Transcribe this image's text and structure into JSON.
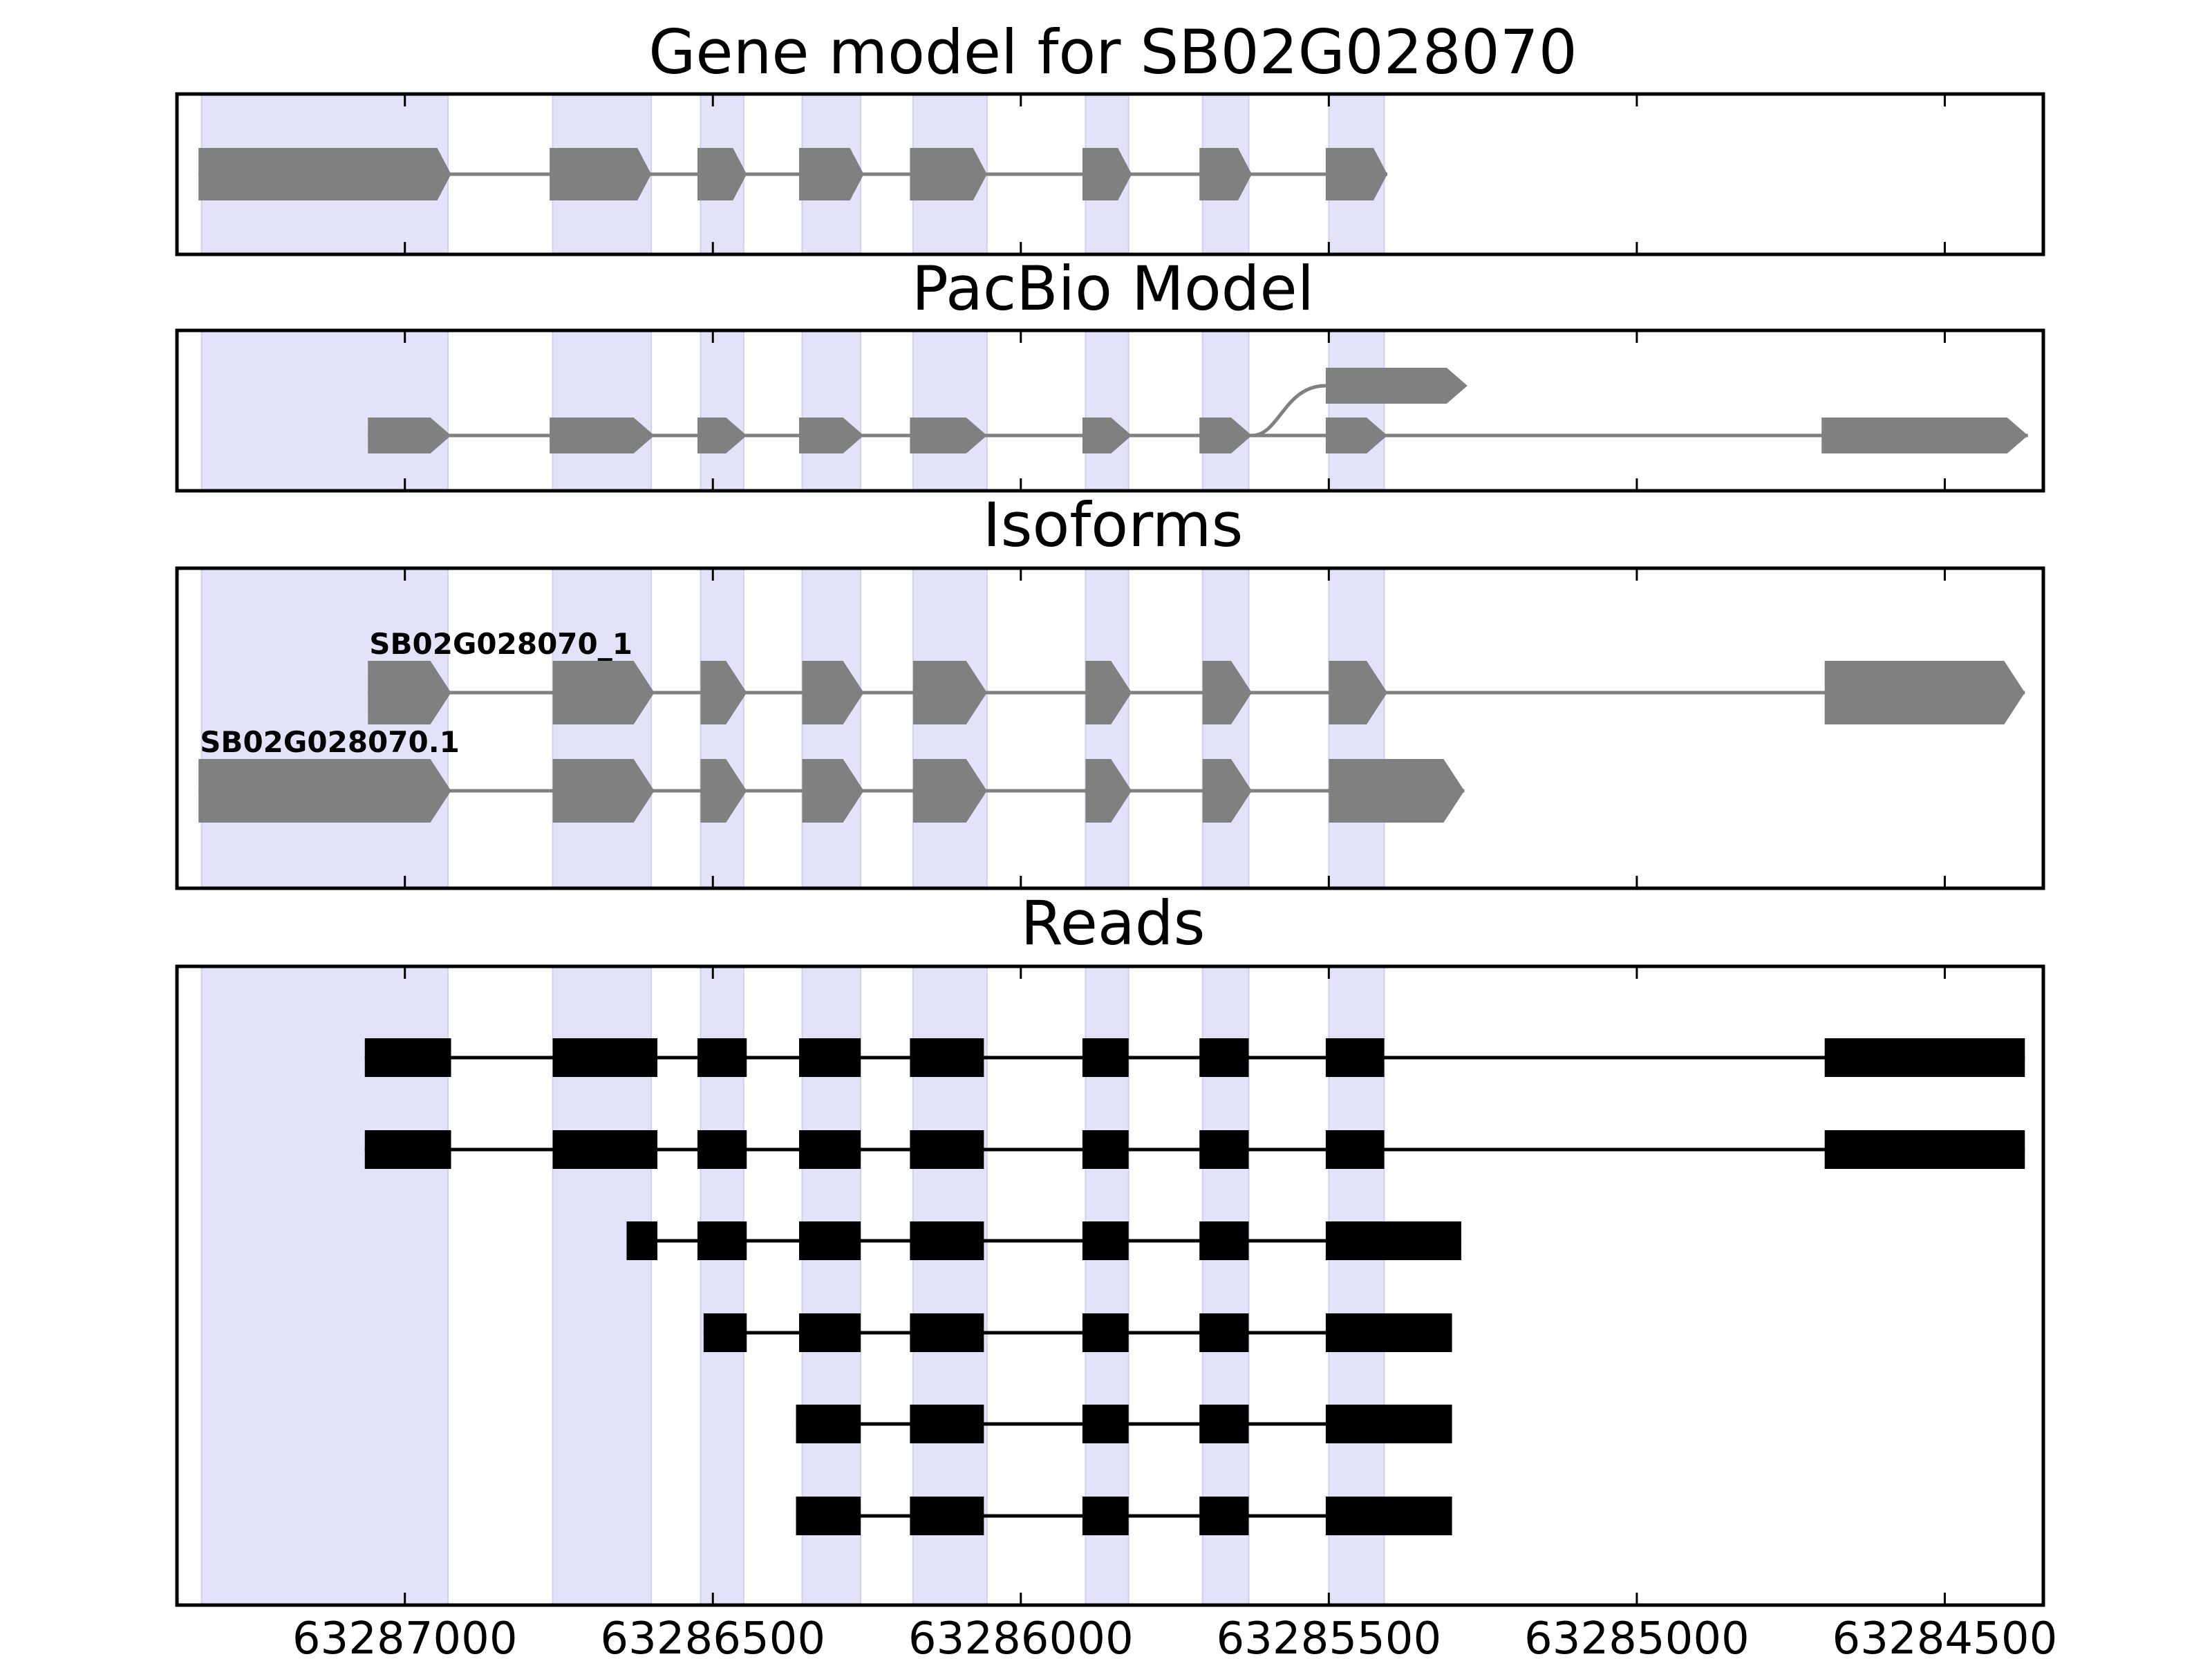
{
  "chart_data": {
    "type": "gene-structure",
    "xaxis": {
      "reversed": true,
      "xlim": [
        63287370,
        63284340
      ],
      "ticks": [
        63287000,
        63286500,
        63286000,
        63285500,
        63285000,
        63284500
      ],
      "tick_labels": [
        "63287000",
        "63286500",
        "63286000",
        "63285500",
        "63285000",
        "63284500"
      ]
    },
    "highlight_color": "#e2e2f9",
    "highlight_regions": [
      [
        63287330,
        63286930
      ],
      [
        63286760,
        63286600
      ],
      [
        63286520,
        63286450
      ],
      [
        63286355,
        63286260
      ],
      [
        63286175,
        63286055
      ],
      [
        63285895,
        63285825
      ],
      [
        63285705,
        63285630
      ],
      [
        63285500,
        63285410
      ]
    ],
    "panels": [
      {
        "title": "Gene model for SB02G028070",
        "mark_color": "#808080",
        "tracks": [
          {
            "label": "",
            "exons": [
              [
                63287335,
                63286925
              ],
              [
                63286765,
                63286600
              ],
              [
                63286525,
                63286445
              ],
              [
                63286360,
                63286255
              ],
              [
                63286180,
                63286055
              ],
              [
                63285900,
                63285820
              ],
              [
                63285710,
                63285625
              ],
              [
                63285505,
                63285405
              ]
            ]
          }
        ]
      },
      {
        "title": "PacBio Model",
        "mark_color": "#808080",
        "tracks": [
          {
            "label": "",
            "exons": [
              [
                63285505,
                63285275
              ]
            ],
            "branch_from": 63285625
          },
          {
            "label": "",
            "exons": [
              [
                63287060,
                63286925
              ],
              [
                63286765,
                63286595
              ],
              [
                63286525,
                63286445
              ],
              [
                63286360,
                63286255
              ],
              [
                63286180,
                63286055
              ],
              [
                63285900,
                63285820
              ],
              [
                63285710,
                63285625
              ],
              [
                63285505,
                63285405
              ],
              [
                63284700,
                63284365
              ]
            ]
          }
        ]
      },
      {
        "title": "Isoforms",
        "mark_color": "#808080",
        "tracks": [
          {
            "label": "SB02G028070_1",
            "exons": [
              [
                63287060,
                63286925
              ],
              [
                63286760,
                63286595
              ],
              [
                63286520,
                63286445
              ],
              [
                63286355,
                63286255
              ],
              [
                63286175,
                63286055
              ],
              [
                63285895,
                63285820
              ],
              [
                63285705,
                63285625
              ],
              [
                63285500,
                63285405
              ],
              [
                63284695,
                63284370
              ]
            ]
          },
          {
            "label": "SB02G028070.1",
            "exons": [
              [
                63287335,
                63286925
              ],
              [
                63286760,
                63286595
              ],
              [
                63286520,
                63286445
              ],
              [
                63286355,
                63286255
              ],
              [
                63286175,
                63286055
              ],
              [
                63285895,
                63285820
              ],
              [
                63285705,
                63285625
              ],
              [
                63285500,
                63285280
              ]
            ]
          }
        ]
      },
      {
        "title": "Reads",
        "mark_color": "#000000",
        "tracks": [
          {
            "label": "",
            "exons": [
              [
                63287065,
                63286925
              ],
              [
                63286760,
                63286590
              ],
              [
                63286525,
                63286445
              ],
              [
                63286360,
                63286260
              ],
              [
                63286180,
                63286060
              ],
              [
                63285900,
                63285825
              ],
              [
                63285710,
                63285630
              ],
              [
                63285505,
                63285410
              ],
              [
                63284695,
                63284370
              ]
            ]
          },
          {
            "label": "",
            "exons": [
              [
                63287065,
                63286925
              ],
              [
                63286760,
                63286590
              ],
              [
                63286525,
                63286445
              ],
              [
                63286360,
                63286260
              ],
              [
                63286180,
                63286060
              ],
              [
                63285900,
                63285825
              ],
              [
                63285710,
                63285630
              ],
              [
                63285505,
                63285410
              ],
              [
                63284695,
                63284370
              ]
            ]
          },
          {
            "label": "",
            "exons": [
              [
                63286640,
                63286590
              ],
              [
                63286525,
                63286445
              ],
              [
                63286360,
                63286260
              ],
              [
                63286180,
                63286060
              ],
              [
                63285900,
                63285825
              ],
              [
                63285710,
                63285630
              ],
              [
                63285505,
                63285285
              ]
            ]
          },
          {
            "label": "",
            "exons": [
              [
                63286515,
                63286445
              ],
              [
                63286360,
                63286260
              ],
              [
                63286180,
                63286060
              ],
              [
                63285900,
                63285825
              ],
              [
                63285710,
                63285630
              ],
              [
                63285505,
                63285300
              ]
            ]
          },
          {
            "label": "",
            "exons": [
              [
                63286365,
                63286260
              ],
              [
                63286180,
                63286060
              ],
              [
                63285900,
                63285825
              ],
              [
                63285710,
                63285630
              ],
              [
                63285505,
                63285300
              ]
            ]
          },
          {
            "label": "",
            "exons": [
              [
                63286365,
                63286260
              ],
              [
                63286180,
                63286060
              ],
              [
                63285900,
                63285825
              ],
              [
                63285710,
                63285630
              ],
              [
                63285505,
                63285300
              ]
            ]
          }
        ]
      }
    ]
  }
}
